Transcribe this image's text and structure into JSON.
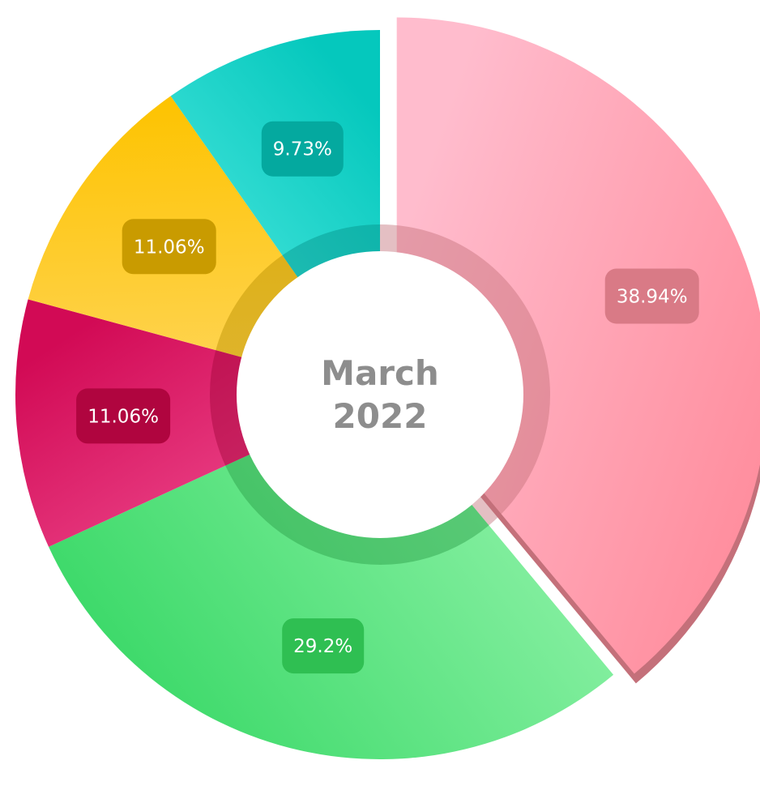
{
  "chart_data": {
    "type": "pie",
    "center_label": [
      "March",
      "2022"
    ],
    "slices": [
      {
        "label": "38.94%",
        "value": 38.94,
        "color_light": "#ffbccd",
        "color_dark": "#ff8f9f",
        "badge": "#d97a86",
        "shadow": "#c4707a",
        "exploded": true
      },
      {
        "label": "29.2%",
        "value": 29.2,
        "color_light": "#8ff2a8",
        "color_dark": "#38d866",
        "badge": "#2fbf52",
        "shadow": "#2a9e46",
        "exploded": false
      },
      {
        "label": "11.06%",
        "value": 11.06,
        "color_light": "#ee4a8e",
        "color_dark": "#d20a55",
        "badge": "#b0053f",
        "shadow": "#a1063b",
        "exploded": false
      },
      {
        "label": "11.06%",
        "value": 11.06,
        "color_light": "#ffd558",
        "color_dark": "#fdc300",
        "badge": "#c99b00",
        "shadow": "#b98f00",
        "exploded": false
      },
      {
        "label": "9.73%",
        "value": 9.73,
        "color_light": "#4ee8e0",
        "color_dark": "#05c8bd",
        "badge": "#04a99f",
        "shadow": "#04928a",
        "exploded": false
      }
    ]
  }
}
